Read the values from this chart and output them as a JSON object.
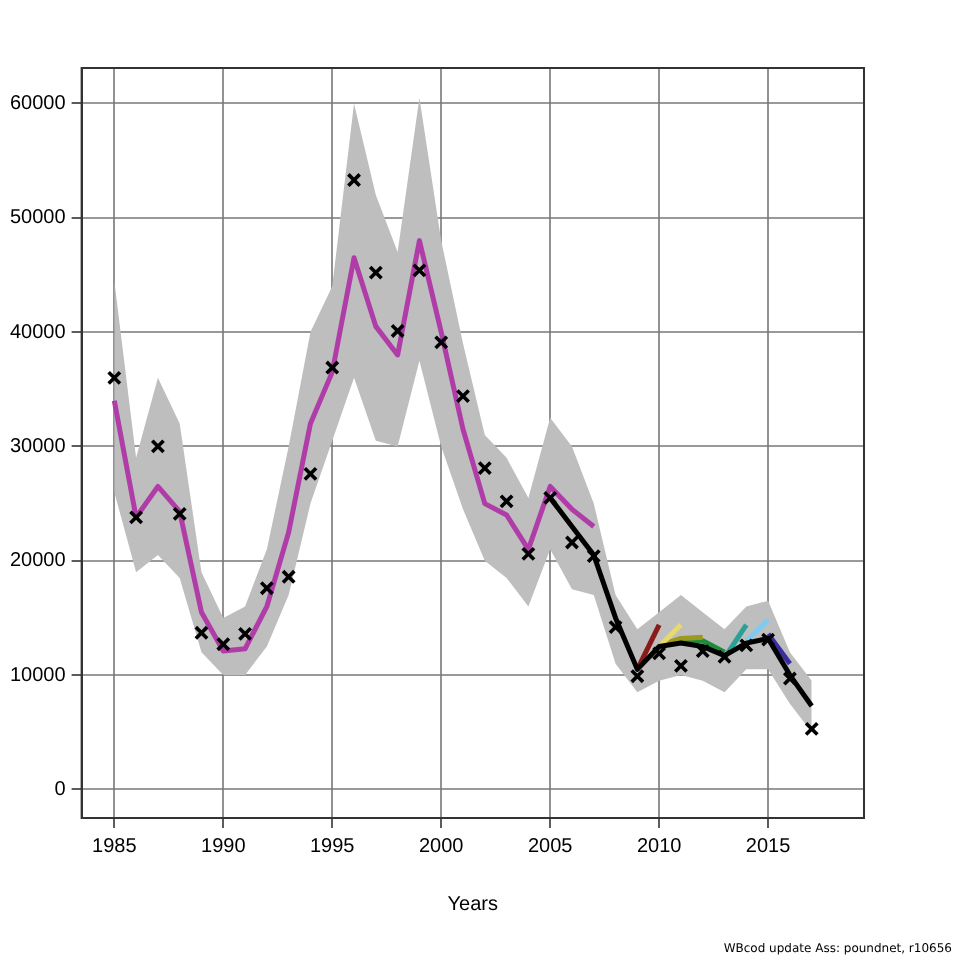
{
  "chart_data": {
    "type": "line",
    "xlabel": "Years",
    "xlim": [
      1983.5,
      2019.4
    ],
    "ylim": [
      -2500,
      63100
    ],
    "xticks": [
      1985,
      1990,
      1995,
      2000,
      2005,
      2010,
      2015
    ],
    "yticks": [
      0,
      10000,
      20000,
      30000,
      40000,
      50000,
      60000
    ],
    "grid": true,
    "legend": false,
    "line_style": "solid",
    "marker": "none",
    "annotations": [
      "WBcod update Ass: poundnet, r10656"
    ],
    "series": [
      {
        "type": "area",
        "color": "#bebebe",
        "x": [
          1985,
          1986,
          1987,
          1988,
          1989,
          1990,
          1991,
          1992,
          1993,
          1994,
          1995,
          1996,
          1997,
          1998,
          1999,
          2000,
          2001,
          2002,
          2003,
          2004,
          2005,
          2006,
          2007,
          2008,
          2009,
          2010,
          2011,
          2012,
          2013,
          2014,
          2015,
          2016,
          2017
        ],
        "values": [
          null,
          null,
          null,
          null,
          null,
          null,
          null,
          null,
          null,
          null,
          null,
          null,
          null,
          null,
          null,
          null,
          null,
          null,
          null,
          null,
          null,
          null,
          null,
          null,
          null,
          null,
          null,
          null,
          null,
          null,
          null,
          null,
          null
        ],
        "lower": [
          26000,
          19000,
          20500,
          18500,
          12000,
          10000,
          10000,
          12500,
          17000,
          25000,
          30500,
          36000,
          30500,
          30000,
          37500,
          30000,
          24500,
          20000,
          18500,
          16000,
          21000,
          17500,
          17000,
          11000,
          8500,
          9500,
          10000,
          9500,
          8500,
          10500,
          10500,
          7500,
          5000
        ],
        "upper": [
          44500,
          29000,
          36000,
          32000,
          19000,
          15000,
          16000,
          21000,
          30000,
          40000,
          44000,
          60000,
          52000,
          47000,
          60500,
          48000,
          39000,
          31000,
          29000,
          25500,
          32500,
          30000,
          25000,
          17000,
          14000,
          15500,
          17000,
          15500,
          14000,
          16000,
          16500,
          12000,
          9500
        ]
      },
      {
        "color": "#000000",
        "x": [
          2005,
          2006,
          2007,
          2008,
          2009,
          2010,
          2011,
          2012,
          2013,
          2014,
          2015,
          2016,
          2017
        ],
        "values": [
          25500,
          23000,
          20500,
          15000,
          10500,
          12500,
          12800,
          12500,
          11700,
          12800,
          13200,
          10000,
          7300
        ]
      },
      {
        "color": "#8b1a1a",
        "x": [
          2009,
          2010
        ],
        "values": [
          10500,
          14400
        ]
      },
      {
        "color": "#e8d870",
        "x": [
          2009,
          2010,
          2011
        ],
        "values": [
          10500,
          12500,
          14400
        ]
      },
      {
        "color": "#9a9a20",
        "x": [
          2010,
          2011,
          2012
        ],
        "values": [
          12600,
          13200,
          13300
        ]
      },
      {
        "color": "#1f8a3a",
        "x": [
          2011,
          2012,
          2013
        ],
        "values": [
          13000,
          13000,
          12000
        ]
      },
      {
        "color": "#2aa198",
        "x": [
          2013,
          2014
        ],
        "values": [
          11500,
          14400
        ]
      },
      {
        "color": "#7ecbf0",
        "x": [
          2014,
          2015
        ],
        "values": [
          13000,
          14800
        ]
      },
      {
        "color": "#3b2fa0",
        "x": [
          2015,
          2016
        ],
        "values": [
          13600,
          11000
        ]
      },
      {
        "color": "#b03ca8",
        "x": [
          1985,
          1986,
          1987,
          1988,
          1989,
          1990,
          1991,
          1992,
          1993,
          1994,
          1995,
          1996,
          1997,
          1998,
          1999,
          2000,
          2001,
          2002,
          2003,
          2004,
          2005,
          2006,
          2007
        ],
        "values": [
          34000,
          23800,
          26500,
          24300,
          15500,
          12100,
          12300,
          16000,
          22500,
          32000,
          36500,
          46500,
          40500,
          38000,
          48000,
          40000,
          31500,
          25000,
          24000,
          21000,
          26500,
          24500,
          23000
        ]
      },
      {
        "type": "scatter",
        "marker": "cross",
        "color": "#000000",
        "x": [
          1985,
          1986,
          1987,
          1988,
          1989,
          1990,
          1991,
          1992,
          1993,
          1994,
          1995,
          1996,
          1997,
          1998,
          1999,
          2000,
          2001,
          2002,
          2003,
          2004,
          2005,
          2006,
          2007,
          2008,
          2009,
          2010,
          2011,
          2012,
          2013,
          2014,
          2015,
          2016,
          2017
        ],
        "values": [
          36000,
          23800,
          30000,
          24100,
          13700,
          12700,
          13600,
          17600,
          18600,
          27600,
          36900,
          53300,
          45200,
          40100,
          45400,
          39100,
          34400,
          28100,
          25200,
          20600,
          25500,
          21600,
          20400,
          14200,
          9900,
          11900,
          10800,
          12100,
          11600,
          12600,
          13100,
          9700,
          5300
        ]
      }
    ]
  }
}
